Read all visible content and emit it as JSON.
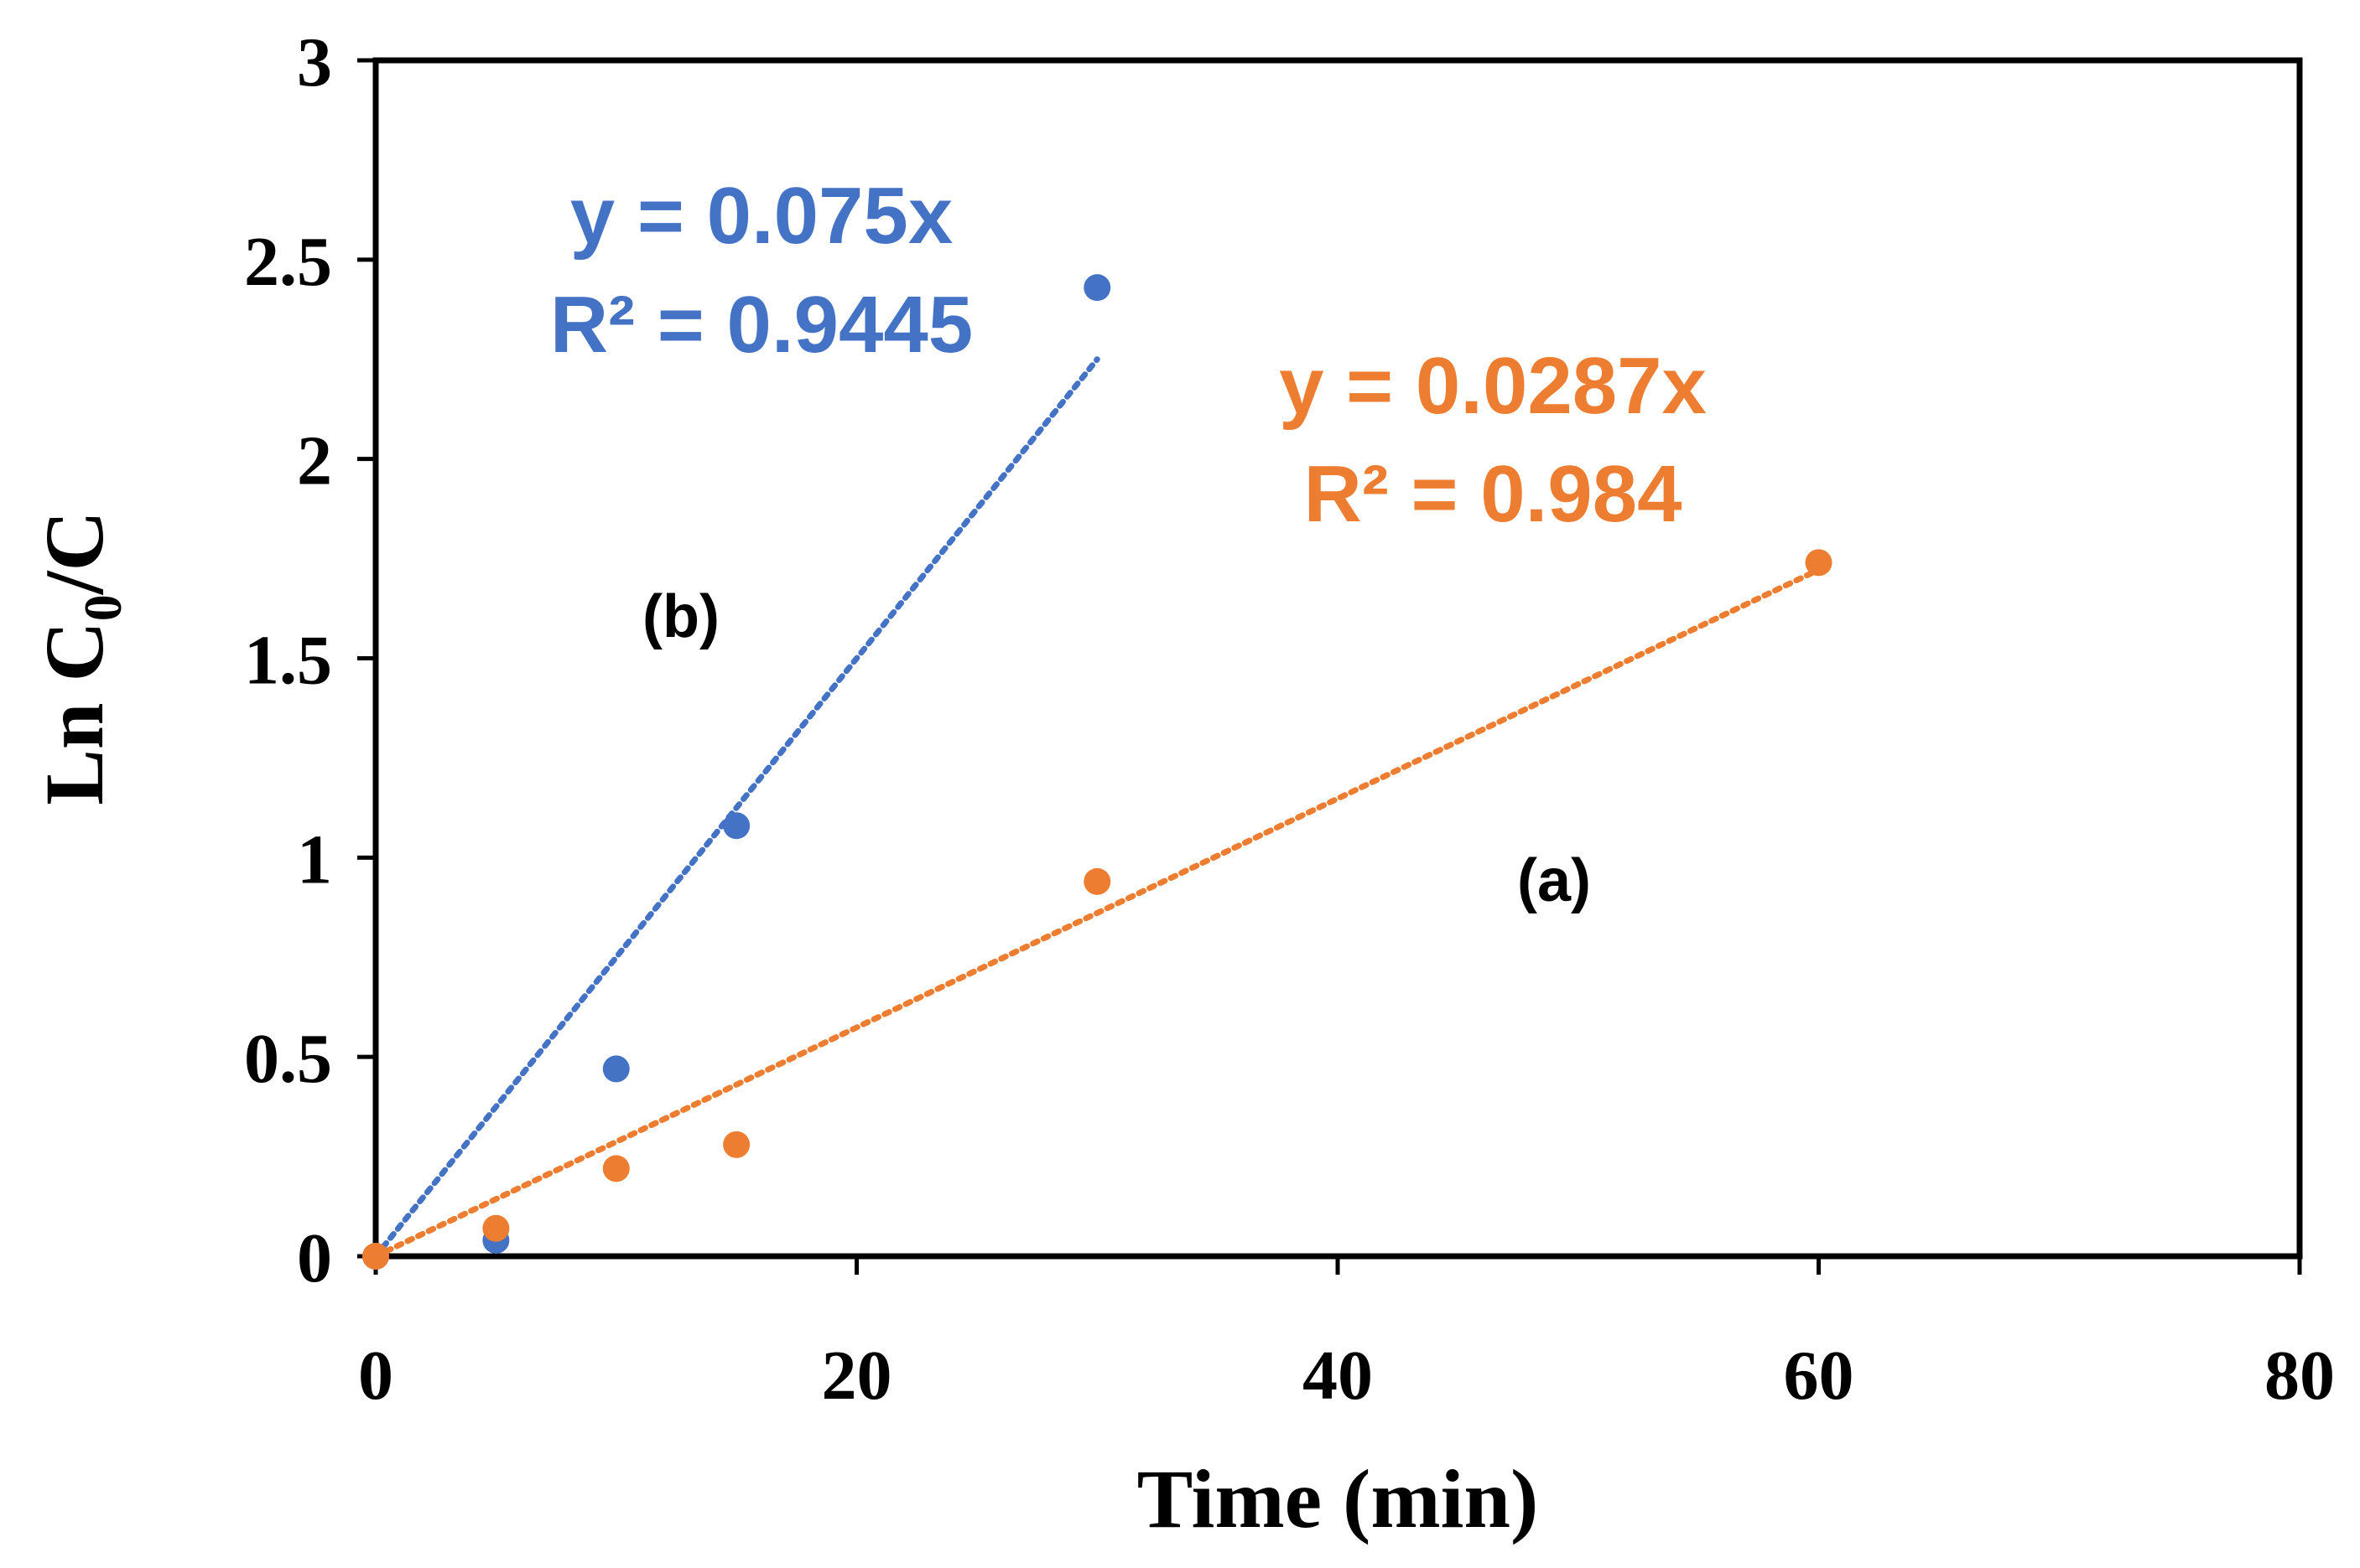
{
  "chart_data": {
    "type": "scatter",
    "title": "",
    "xlabel": "Time (min)",
    "ylabel_main": "Ln C",
    "ylabel_sub": "0",
    "ylabel_tail": "/C",
    "xlim": [
      0,
      80
    ],
    "ylim": [
      0,
      3
    ],
    "x_ticks": [
      "0",
      "20",
      "40",
      "60",
      "80"
    ],
    "y_ticks": [
      "0",
      "0.5",
      "1",
      "1.5",
      "2",
      "2.5",
      "3"
    ],
    "grid": false,
    "series": [
      {
        "name": "(b)",
        "color": "#4472C4",
        "points": [
          [
            0,
            0.0
          ],
          [
            5,
            0.04
          ],
          [
            10,
            0.47
          ],
          [
            15,
            1.08
          ],
          [
            30,
            2.43
          ]
        ],
        "trendline": {
          "slope": 0.075,
          "x_range": [
            0,
            30
          ]
        },
        "equation": "y = 0.075x",
        "r2": "R² = 0.9445"
      },
      {
        "name": "(a)",
        "color": "#ED7D31",
        "points": [
          [
            0,
            0.0
          ],
          [
            5,
            0.07
          ],
          [
            10,
            0.22
          ],
          [
            15,
            0.28
          ],
          [
            30,
            0.94
          ],
          [
            60,
            1.74
          ]
        ],
        "trendline": {
          "slope": 0.0287,
          "x_range": [
            0,
            60
          ]
        },
        "equation": "y = 0.0287x",
        "r2": "R² = 0.984"
      }
    ]
  }
}
